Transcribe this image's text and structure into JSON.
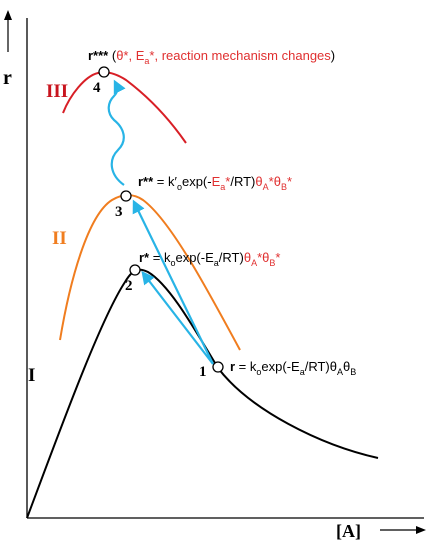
{
  "axes": {
    "y_label": "r",
    "x_label": "[A]"
  },
  "colors": {
    "axis": "#000000",
    "curve_I": "#000000",
    "curve_II": "#f07d1f",
    "curve_III": "#d81f26",
    "arrow": "#28b4e6",
    "highlight": "#e03030",
    "label_I": "#000000",
    "label_II": "#f07d1f",
    "label_III": "#c8141e"
  },
  "curves": {
    "I": {
      "label": "I"
    },
    "II": {
      "label": "II"
    },
    "III": {
      "label": "III"
    }
  },
  "points": {
    "p1": {
      "number": "1"
    },
    "p2": {
      "number": "2"
    },
    "p3": {
      "number": "3"
    },
    "p4": {
      "number": "4"
    }
  },
  "equations": {
    "eq1": {
      "r": "r",
      "mid": " = k",
      "sub1": "o",
      "mid2": "exp(-E",
      "sub2": "a",
      "mid3": "/RT)θ",
      "sub3": "A",
      "mid4": "θ",
      "sub4": "B"
    },
    "eq2": {
      "r": "r*",
      "mid": " = k",
      "sub1": "o",
      "mid2": "exp(-E",
      "sub2": "a",
      "mid3": "/RT)",
      "red1": "θ",
      "redsub1": "A",
      "red2": "*θ",
      "redsub2": "B",
      "red3": "*"
    },
    "eq3": {
      "r": "r**",
      "mid": " = k′",
      "sub1": "o",
      "mid2": "exp(-",
      "red1": "E",
      "redsub1": "a",
      "red2": "*",
      "mid3": "/RT)",
      "red3": "θ",
      "redsub3": "A",
      "red4": "*θ",
      "redsub4": "B",
      "red5": "*"
    },
    "eq4": {
      "r": "r***",
      "open": " (",
      "red": "θ*, E",
      "redsub": "a",
      "red2": "*, reaction mechanism changes",
      "close": ")"
    }
  }
}
